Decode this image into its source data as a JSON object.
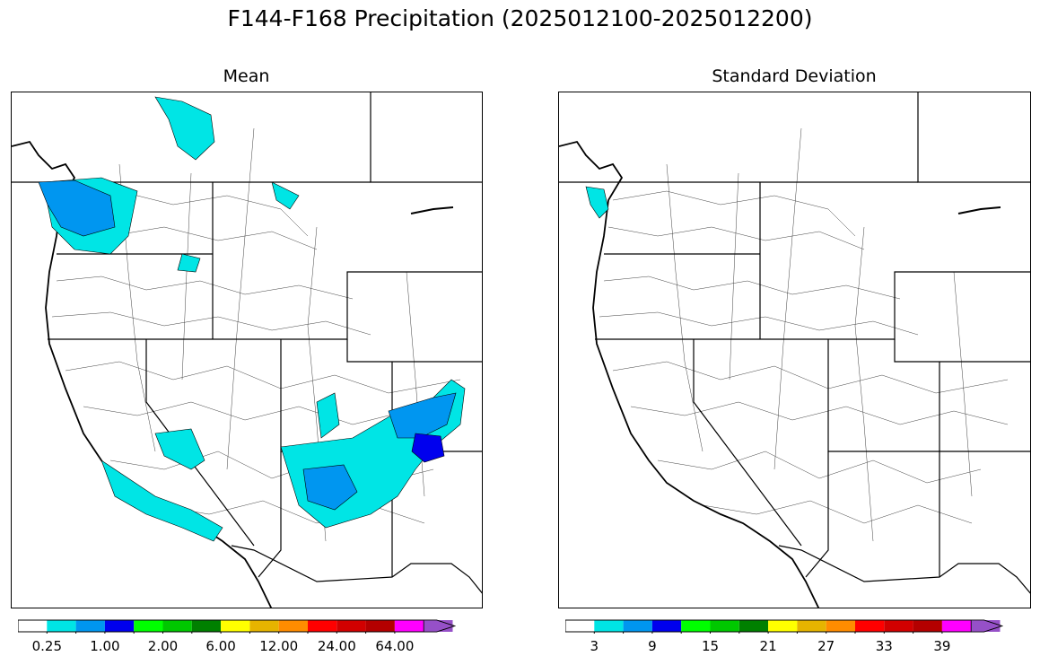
{
  "suptitle": "F144-F168 Precipitation (2025012100-2025012200)",
  "panels": [
    {
      "title": "Mean"
    },
    {
      "title": "Standard Deviation"
    }
  ],
  "colors": [
    "#ffffff",
    "#00e5e5",
    "#0096f0",
    "#0000ee",
    "#00ff00",
    "#00c800",
    "#008000",
    "#ffff00",
    "#e6b400",
    "#ff8c00",
    "#ff0000",
    "#d20000",
    "#b40000",
    "#ff00ff",
    "#9650c8"
  ],
  "mean_colorbar": {
    "ticks": [
      "0.25",
      "1.00",
      "2.00",
      "6.00",
      "12.00",
      "24.00",
      "64.00"
    ]
  },
  "sd_colorbar": {
    "ticks": [
      "3",
      "9",
      "15",
      "21",
      "27",
      "33",
      "39"
    ]
  }
}
